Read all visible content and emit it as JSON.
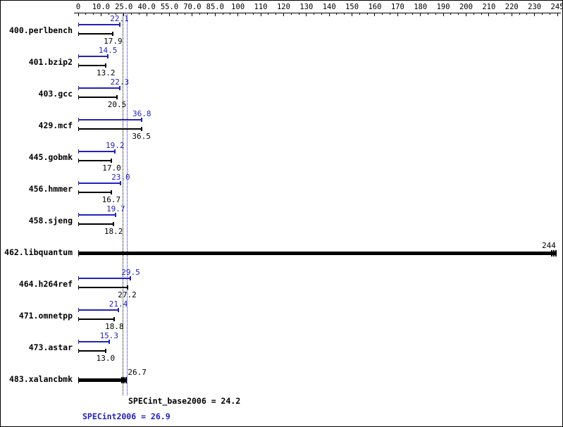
{
  "colors": {
    "peak_blue": "#2222bb",
    "base_black": "#000000",
    "background": "#ffffff",
    "border": "#000000"
  },
  "axis": {
    "tick_labels": [
      "0",
      "10.0",
      "25.0",
      "40.0",
      "55.0",
      "70.0",
      "85.0",
      "100",
      "110",
      "120",
      "130",
      "140",
      "150",
      "160",
      "170",
      "180",
      "190",
      "200",
      "210",
      "220",
      "230",
      "245"
    ],
    "tick_values": [
      0,
      10,
      25,
      40,
      55,
      70,
      85,
      100,
      110,
      120,
      130,
      140,
      150,
      160,
      170,
      180,
      190,
      200,
      210,
      220,
      230,
      245
    ]
  },
  "benchmarks": [
    {
      "name": "400.perlbench",
      "peak": 22.1,
      "base": 17.9,
      "peak_label": "22.1",
      "base_label": "17.9"
    },
    {
      "name": "401.bzip2",
      "peak": 14.5,
      "base": 13.2,
      "peak_label": "14.5",
      "base_label": "13.2"
    },
    {
      "name": "403.gcc",
      "peak": 22.3,
      "base": 20.5,
      "peak_label": "22.3",
      "base_label": "20.5"
    },
    {
      "name": "429.mcf",
      "peak": 36.8,
      "base": 36.5,
      "peak_label": "36.8",
      "base_label": "36.5"
    },
    {
      "name": "445.gobmk",
      "peak": 19.2,
      "base": 17.0,
      "peak_label": "19.2",
      "base_label": "17.0"
    },
    {
      "name": "456.hmmer",
      "peak": 23.0,
      "base": 16.7,
      "peak_label": "23.0",
      "base_label": "16.7"
    },
    {
      "name": "458.sjeng",
      "peak": 19.7,
      "base": 18.2,
      "peak_label": "19.7",
      "base_label": "18.2"
    },
    {
      "name": "462.libquantum",
      "single": 244,
      "single_label": "244",
      "bold": true
    },
    {
      "name": "464.h264ref",
      "peak": 29.5,
      "base": 27.2,
      "peak_label": "29.5",
      "base_label": "27.2"
    },
    {
      "name": "471.omnetpp",
      "peak": 21.4,
      "base": 18.8,
      "peak_label": "21.4",
      "base_label": "18.8"
    },
    {
      "name": "473.astar",
      "peak": 15.3,
      "base": 13.0,
      "peak_label": "15.3",
      "base_label": "13.0"
    },
    {
      "name": "483.xalancbmk",
      "single": 26.7,
      "single_label": "26.7",
      "bold": true
    }
  ],
  "summary": {
    "base_text": "SPECint_base2006 = 24.2",
    "peak_text": "SPECint2006 = 26.9",
    "base_value": 24.2,
    "peak_value": 26.9
  },
  "chart_data": {
    "type": "bar",
    "orientation": "horizontal",
    "title": "",
    "xlabel": "",
    "ylabel": "",
    "categories": [
      "400.perlbench",
      "401.bzip2",
      "403.gcc",
      "429.mcf",
      "445.gobmk",
      "456.hmmer",
      "458.sjeng",
      "462.libquantum",
      "464.h264ref",
      "471.omnetpp",
      "473.astar",
      "483.xalancbmk"
    ],
    "series": [
      {
        "name": "peak (SPECint2006)",
        "color": "#2222bb",
        "values": [
          22.1,
          14.5,
          22.3,
          36.8,
          19.2,
          23.0,
          19.7,
          null,
          29.5,
          21.4,
          15.3,
          null
        ]
      },
      {
        "name": "base (SPECint_base2006)",
        "color": "#000000",
        "values": [
          17.9,
          13.2,
          20.5,
          36.5,
          17.0,
          16.7,
          18.2,
          244,
          27.2,
          18.8,
          13.0,
          26.7
        ]
      }
    ],
    "reference_lines": [
      {
        "label": "SPECint_base2006 = 24.2",
        "value": 24.2,
        "color": "#000000",
        "style": "dotted"
      },
      {
        "label": "SPECint2006 = 26.9",
        "value": 26.9,
        "color": "#2222bb",
        "style": "dotted"
      }
    ],
    "x_axis_ticks": [
      0,
      10,
      25,
      40,
      55,
      70,
      85,
      100,
      110,
      120,
      130,
      140,
      150,
      160,
      170,
      180,
      190,
      200,
      210,
      220,
      230,
      245
    ],
    "xlim": [
      0,
      245
    ],
    "grid": false,
    "legend": "none"
  }
}
